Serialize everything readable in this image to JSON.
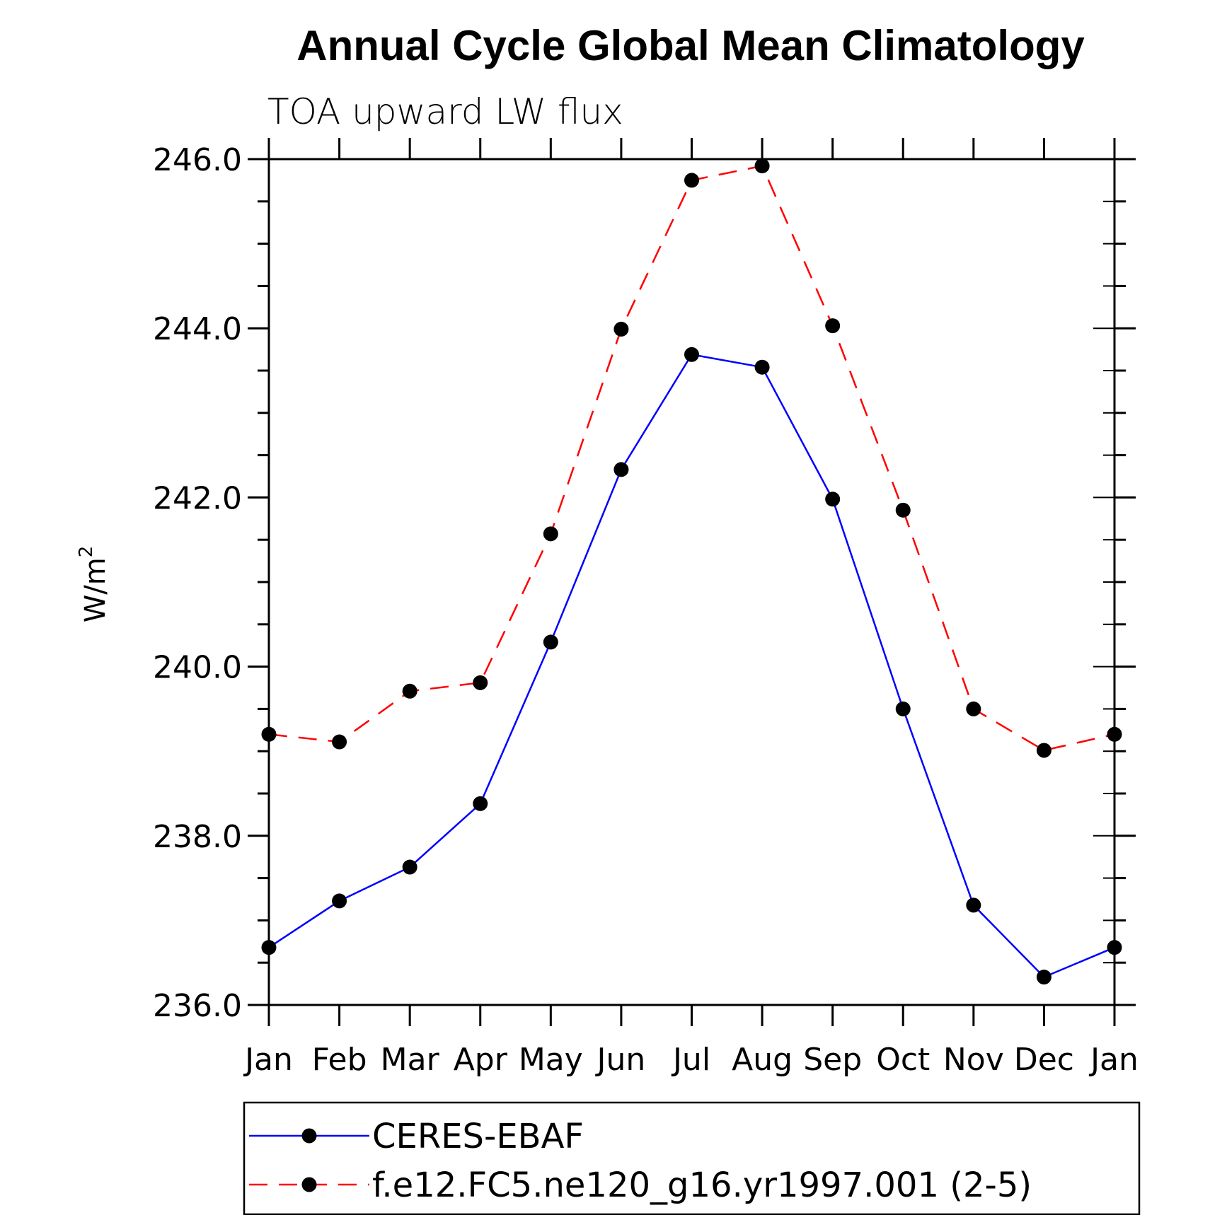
{
  "chart_data": {
    "type": "line",
    "title": "Annual Cycle Global Mean Climatology",
    "subtitle": "TOA upward LW flux",
    "ylabel": "W/m",
    "ylabel_superscript": "2",
    "xlabel": "",
    "categories": [
      "Jan",
      "Feb",
      "Mar",
      "Apr",
      "May",
      "Jun",
      "Jul",
      "Aug",
      "Sep",
      "Oct",
      "Nov",
      "Dec",
      "Jan"
    ],
    "ylim": [
      236.0,
      246.0
    ],
    "yticks": [
      "236.0",
      "238.0",
      "240.0",
      "242.0",
      "244.0",
      "246.0"
    ],
    "grid": false,
    "legend_position": "bottom",
    "series": [
      {
        "name": "CERES-EBAF",
        "color": "#0000ff",
        "dashed": false,
        "values": [
          236.68,
          237.23,
          237.63,
          238.38,
          240.29,
          242.33,
          243.69,
          243.54,
          241.98,
          239.5,
          237.18,
          236.33,
          236.68
        ]
      },
      {
        "name": "f.e12.FC5.ne120_g16.yr1997.001 (2-5)",
        "color": "#ff0000",
        "dashed": true,
        "values": [
          239.2,
          239.11,
          239.71,
          239.81,
          241.57,
          243.99,
          245.75,
          245.92,
          244.03,
          241.85,
          239.5,
          239.01,
          239.2
        ]
      }
    ]
  }
}
